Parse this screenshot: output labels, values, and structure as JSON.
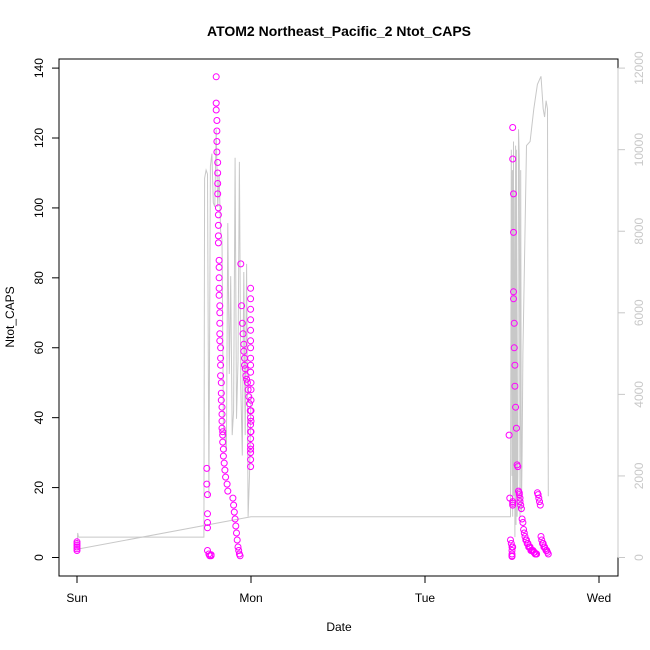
{
  "chart_data": {
    "type": "scatter",
    "title": "ATOM2 Northeast_Pacific_2 Ntot_CAPS",
    "xlabel": "Date",
    "ylabel": "Ntot_CAPS",
    "x_ticks": [
      "Sun",
      "Mon",
      "Tue",
      "Wed"
    ],
    "xlim": [
      "Sun 00:00",
      "Wed 00:00"
    ],
    "ylim": [
      0,
      140
    ],
    "y_ticks": [
      0,
      20,
      40,
      60,
      80,
      100,
      120,
      140
    ],
    "y2lim": [
      0,
      12000
    ],
    "y2_ticks": [
      0,
      2000,
      4000,
      6000,
      8000,
      10000,
      12000
    ],
    "grid": false,
    "colors": {
      "points": "#ff00ff",
      "secondary_line": "#c8c8c8",
      "frame": "#000000"
    },
    "series": [
      {
        "marker": "open-circle",
        "axis": "left",
        "points_x_hours": [
          0,
          0,
          0,
          0,
          0,
          0,
          17.9,
          17.9,
          18,
          18,
          18,
          18,
          18,
          18.2,
          18.3,
          18.5,
          18.5,
          19.2,
          19.2,
          19.2,
          19.3,
          19.3,
          19.3,
          19.3,
          19.4,
          19.4,
          19.4,
          19.4,
          19.5,
          19.5,
          19.5,
          19.5,
          19.5,
          19.6,
          19.6,
          19.6,
          19.6,
          19.6,
          19.7,
          19.7,
          19.7,
          19.7,
          19.7,
          19.8,
          19.8,
          19.8,
          19.8,
          19.9,
          19.9,
          19.9,
          20,
          20,
          20,
          20,
          20.1,
          20.1,
          20.1,
          20.2,
          20.2,
          20.3,
          20.4,
          20.5,
          20.7,
          20.8,
          21.5,
          21.6,
          21.7,
          21.8,
          21.9,
          22,
          22.1,
          22.2,
          22.3,
          22.4,
          22.5,
          22.6,
          22.7,
          22.8,
          22.9,
          23,
          23,
          23.1,
          23.1,
          23.2,
          23.3,
          23.4,
          23.5,
          23.6,
          23.7,
          23.8,
          23.9,
          23.95,
          23.95,
          23.95,
          23.95,
          23.95,
          23.95,
          23.95,
          23.95,
          23.95,
          23.95,
          23.95,
          23.95,
          23.95,
          23.95,
          23.95,
          23.95,
          23.95,
          23.95,
          23.95,
          24,
          24,
          24,
          24,
          24,
          24,
          59.6,
          59.7,
          59.8,
          59.9,
          60,
          60,
          60,
          60,
          60,
          60.1,
          60.1,
          60.1,
          60.1,
          60.1,
          60.1,
          60.2,
          60.2,
          60.2,
          60.2,
          60.3,
          60.3,
          60.4,
          60.4,
          60.5,
          60.6,
          60.7,
          60.8,
          60.9,
          61,
          61,
          61.1,
          61.1,
          61.2,
          61.3,
          61.4,
          61.5,
          61.6,
          61.7,
          61.8,
          61.9,
          62,
          62.1,
          62.2,
          62.3,
          62.4,
          62.5,
          62.6,
          62.7,
          62.8,
          62.9,
          63,
          63.1,
          63.2,
          63.3,
          63.4,
          63.5,
          63.6,
          63.7,
          63.8,
          63.9,
          64,
          64.1,
          64.2,
          64.3,
          64.4,
          64.5,
          64.6,
          64.7,
          64.8,
          64.9,
          65
        ],
        "y": [
          2.5,
          3.5,
          4,
          4.5,
          3,
          2,
          25.5,
          21,
          18,
          12.5,
          10,
          8.5,
          2,
          1,
          0.5,
          0.5,
          0.8,
          137.5,
          130,
          128,
          125,
          122,
          119,
          116,
          113,
          110,
          107,
          104,
          100,
          98,
          95,
          92,
          90,
          85,
          83,
          80,
          77,
          75,
          72,
          70,
          67,
          64,
          62,
          60,
          57,
          55,
          52,
          50,
          47,
          45,
          43,
          41,
          39,
          37,
          36,
          35,
          33,
          31,
          29,
          27,
          25,
          23,
          21,
          19,
          17,
          15,
          13,
          11,
          9,
          7,
          5,
          3,
          2,
          1,
          0.5,
          84,
          72,
          67,
          64,
          61,
          59,
          57,
          55,
          54,
          52,
          51,
          50,
          48,
          46,
          44,
          42,
          40,
          38,
          36,
          34,
          32,
          31,
          30,
          28,
          26,
          77,
          74,
          71,
          68,
          65,
          62,
          60,
          57,
          55,
          53,
          50,
          48,
          45,
          42,
          39,
          36,
          35,
          17,
          5,
          4,
          3,
          2,
          1,
          0.5,
          0.3,
          16,
          15.5,
          15,
          3,
          123,
          114,
          104,
          93,
          76,
          74,
          67,
          60,
          55,
          49,
          43,
          37,
          26.5,
          26,
          19,
          18.5,
          18,
          17,
          16,
          15,
          14,
          11,
          10,
          8,
          7,
          6,
          5,
          5,
          4,
          4,
          3,
          3,
          3,
          2,
          2,
          2,
          2,
          1.5,
          1.5,
          1,
          1,
          1,
          18.5,
          18,
          17,
          16,
          15,
          6,
          5,
          4,
          4,
          3,
          3,
          2.5,
          2,
          2,
          1.5,
          1,
          1,
          0.8,
          0.6,
          0.5,
          0.5,
          9.5,
          27.5,
          0.4,
          0.3
        ]
      },
      {
        "marker": "line",
        "axis": "right",
        "points_x_hours": [
          0,
          24,
          59.8,
          59.9,
          60.0,
          60.05,
          60.1,
          60.2,
          60.25,
          60.3,
          60.4,
          60.5,
          60.55,
          60.6,
          60.7,
          60.8,
          60.9,
          61,
          61.1,
          61.2,
          61.3,
          61.4,
          61.5,
          62,
          62.5,
          63,
          63.5,
          64,
          64.3,
          64.5,
          64.7,
          64.9,
          65
        ],
        "y": [
          200,
          1000,
          1000,
          10000,
          2000,
          9500,
          1000,
          10200,
          1500,
          9000,
          500,
          10100,
          800,
          10000,
          1000,
          2000,
          10500,
          9800,
          1000,
          9500,
          1100,
          2500,
          5000,
          10100,
          10200,
          11000,
          11600,
          11800,
          11000,
          10800,
          11200,
          11000,
          1500
        ]
      },
      {
        "marker": "line",
        "axis": "right",
        "points_x_hours": [
          0,
          0.1,
          0.2,
          17.5,
          17.6,
          17.8,
          18.0,
          18.2,
          18.4,
          18.6,
          18.8,
          19.0,
          19.2,
          19.4,
          19.6,
          19.8,
          20.0,
          20.2,
          20.4,
          20.6,
          20.8,
          21.0,
          21.2,
          21.4,
          21.6,
          21.8,
          22.0,
          22.2,
          22.4,
          22.6,
          22.8,
          23.0,
          23.2,
          23.4,
          23.6,
          23.8,
          24.0
        ],
        "y": [
          300,
          600,
          500,
          500,
          9300,
          9500,
          9400,
          1500,
          9600,
          9900,
          8700,
          8600,
          10500,
          8600,
          9400,
          8000,
          7800,
          3200,
          3000,
          2600,
          8200,
          4500,
          6900,
          3000,
          3600,
          9800,
          3400,
          4800,
          9700,
          4200,
          2500,
          7000,
          3000,
          7200,
          1000,
          2000,
          4000
        ]
      }
    ]
  }
}
